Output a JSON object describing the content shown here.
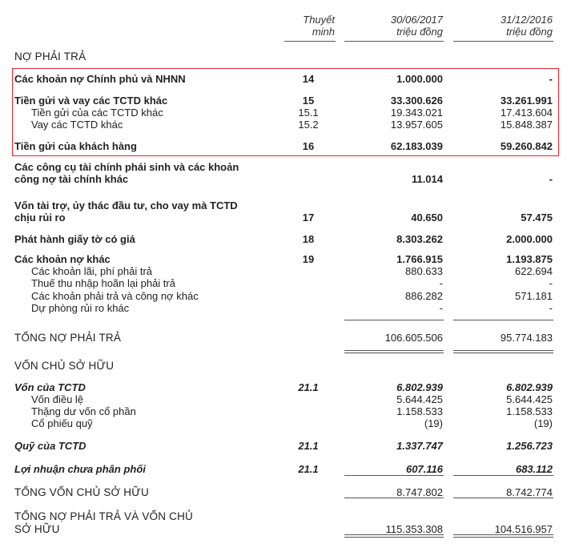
{
  "header": {
    "note_col": [
      "Thuyết",
      "minh"
    ],
    "col1": [
      "30/06/2017",
      "triệu đồng"
    ],
    "col2": [
      "31/12/2016",
      "triệu đồng"
    ]
  },
  "highlight_color": "#e0262e",
  "rows": [
    {
      "label": "NỢ PHẢI TRẢ",
      "style": "section"
    },
    {
      "label": "Các khoản nợ Chính phủ và NHNN",
      "note": "14",
      "v1": "1.000.000",
      "v2": "-",
      "style": "bold"
    },
    {
      "label": "Tiền gửi và vay các TCTD khác",
      "note": "15",
      "v1": "33.300.626",
      "v2": "33.261.991",
      "style": "bold"
    },
    {
      "label": "Tiền gửi của các TCTD khác",
      "note": "15.1",
      "v1": "19.343.021",
      "v2": "17.413.604",
      "style": "sub"
    },
    {
      "label": "Vay các TCTD khác",
      "note": "15.2",
      "v1": "13.957.605",
      "v2": "15.848.387",
      "style": "sub"
    },
    {
      "label": "Tiền gửi của khách hàng",
      "note": "16",
      "v1": "62.183.039",
      "v2": "59.260.842",
      "style": "bold"
    },
    {
      "label": "Các công cụ tài chính phái sinh và các khoản",
      "style": "bold"
    },
    {
      "label": "công nợ tài chính khác",
      "v1": "11.014",
      "v2": "-",
      "style": "bold"
    },
    {
      "label": "Vốn tài trợ, ủy thác đầu tư, cho vay mà TCTD",
      "style": "bold"
    },
    {
      "label": "chịu rủi ro",
      "note": "17",
      "v1": "40.650",
      "v2": "57.475",
      "style": "bold"
    },
    {
      "label": "Phát hành giấy tờ có giá",
      "note": "18",
      "v1": "8.303.262",
      "v2": "2.000.000",
      "style": "bold"
    },
    {
      "label": "Các khoản nợ khác",
      "note": "19",
      "v1": "1.766.915",
      "v2": "1.193.875",
      "style": "bold"
    },
    {
      "label": "Các khoản lãi, phí phải trả",
      "v1": "880.633",
      "v2": "622.694",
      "style": "sub"
    },
    {
      "label": "Thuế thu nhập hoãn lại phải trả",
      "v1": "-",
      "v2": "-",
      "style": "sub"
    },
    {
      "label": "Các khoản phải trả và công nợ khác",
      "v1": "886.282",
      "v2": "571.181",
      "style": "sub"
    },
    {
      "label": "Dự phòng rủi ro khác",
      "v1": "-",
      "v2": "-",
      "style": "sub"
    },
    {
      "label": "TỔNG NỢ PHẢI TRẢ",
      "v1": "106.605.506",
      "v2": "95.774.183",
      "style": "total"
    },
    {
      "label": "VỐN CHỦ SỞ HỮU",
      "style": "section"
    },
    {
      "label": "Vốn của TCTD",
      "note": "21.1",
      "v1": "6.802.939",
      "v2": "6.802.939",
      "style": "bolditalic"
    },
    {
      "label": "Vốn điều lệ",
      "v1": "5.644.425",
      "v2": "5.644.425",
      "style": "sub"
    },
    {
      "label": "Thặng dư vốn cổ phần",
      "v1": "1.158.533",
      "v2": "1.158.533",
      "style": "sub"
    },
    {
      "label": "Cổ phiếu quỹ",
      "v1": "(19)",
      "v2": "(19)",
      "style": "sub"
    },
    {
      "label": "Quỹ của TCTD",
      "note": "21.1",
      "v1": "1.337.747",
      "v2": "1.256.723",
      "style": "bolditalic"
    },
    {
      "label": "Lợi nhuận chưa phân phối",
      "note": "21.1",
      "v1": "607.116",
      "v2": "683.112",
      "style": "bolditalic"
    },
    {
      "label": "TỔNG VỐN CHỦ SỞ HỮU",
      "v1": "8.747.802",
      "v2": "8.742.774",
      "style": "total"
    },
    {
      "label": "TỔNG NỢ PHẢI TRẢ VÀ VỐN CHỦ",
      "style": "total"
    },
    {
      "label": "SỞ HỮU",
      "v1": "115.353.308",
      "v2": "104.516.957",
      "style": "total"
    }
  ]
}
